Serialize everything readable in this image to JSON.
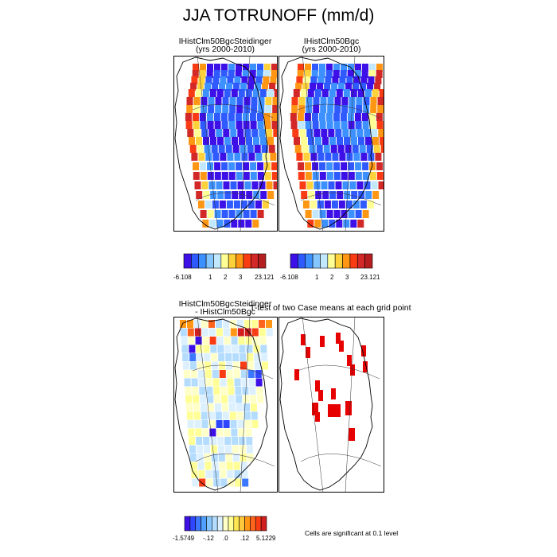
{
  "title": "JJA TOTRUNOFF (mm/d)",
  "panels": {
    "top_left": {
      "title": "IHistClm50BgcSteidinger",
      "subtitle": "(yrs 2000-2010)"
    },
    "top_right": {
      "title": "IHistClm50Bgc",
      "subtitle": "(yrs 2000-2010)"
    },
    "bottom_left": {
      "title": "IHistClm50BgcSteidinger",
      "subtitle": "- IHistClm50Bgc"
    },
    "bottom_right": {
      "title": "T-test of two Case means at each grid point"
    }
  },
  "colorbar_top": {
    "colors": [
      "#3c10e6",
      "#2e5aff",
      "#3c90ff",
      "#86c6ff",
      "#c2e8ff",
      "#ffff96",
      "#ffd23c",
      "#ff9614",
      "#fa3c14",
      "#d22828",
      "#b41e1e"
    ],
    "labels": [
      "-6.108",
      "1",
      "2",
      "3",
      "23.121"
    ]
  },
  "colorbar_diff": {
    "colors": [
      "#3c10e6",
      "#2e46ff",
      "#3c78ff",
      "#50a0ff",
      "#86c6ff",
      "#b4dcff",
      "#dcf0ff",
      "#ffffc8",
      "#ffff96",
      "#ffe650",
      "#ffc83c",
      "#ff9614",
      "#ff641e",
      "#fa3c14",
      "#d21e1e"
    ],
    "labels": [
      "-1.5749",
      "-.12",
      ".0",
      ".12",
      "5.1229"
    ]
  },
  "significance_note": "Cells are significant at 0.1 level",
  "significance_color": "#e60000"
}
